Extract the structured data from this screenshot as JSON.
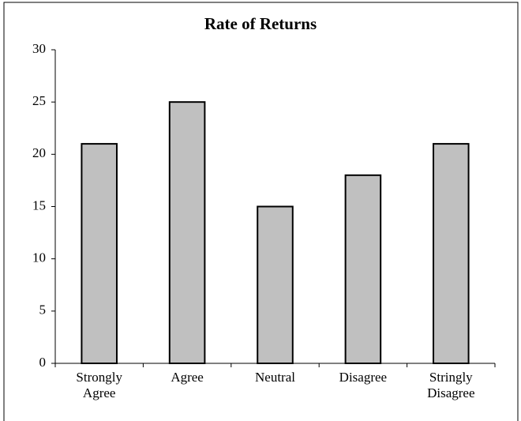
{
  "chart_data": {
    "type": "bar",
    "title": "Rate of Returns",
    "categories": [
      "Strongly Agree",
      "Agree",
      "Neutral",
      "Disagree",
      "Stringly Disagree"
    ],
    "values": [
      21,
      25,
      15,
      18,
      21
    ],
    "color": "#c0c0c0",
    "ylim": [
      0,
      30
    ],
    "yticks": [
      0,
      5,
      10,
      15,
      20,
      25,
      30
    ],
    "grid": false
  }
}
